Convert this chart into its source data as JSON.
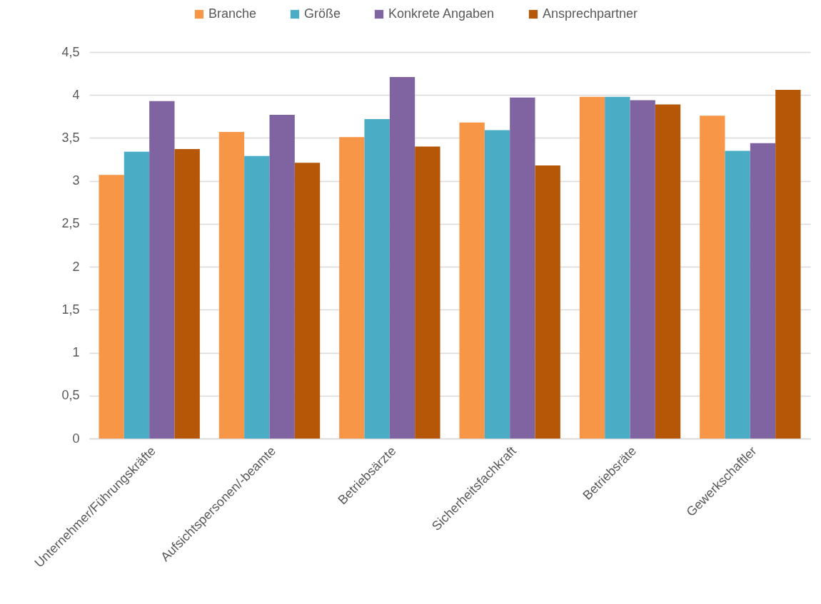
{
  "chart_data": {
    "type": "bar",
    "categories": [
      "Unternehmer/Führungskräfte",
      "Aufsichtspersonen/-beamte",
      "Betriebsärzte",
      "Sicherheitsfachkraft",
      "Betriebsräte",
      "Gewerkschaftler"
    ],
    "series": [
      {
        "name": "Branche",
        "color": "#f79646",
        "values": [
          3.07,
          3.57,
          3.51,
          3.68,
          3.98,
          3.76
        ]
      },
      {
        "name": "Größe",
        "color": "#4bacc6",
        "values": [
          3.34,
          3.29,
          3.72,
          3.59,
          3.98,
          3.35
        ]
      },
      {
        "name": "Konkrete Angaben",
        "color": "#8064a2",
        "values": [
          3.93,
          3.77,
          4.21,
          3.97,
          3.94,
          3.44
        ]
      },
      {
        "name": "Ansprechpartner",
        "color": "#b65708",
        "values": [
          3.37,
          3.21,
          3.4,
          3.18,
          3.89,
          4.06
        ]
      }
    ],
    "ylim": [
      0,
      4.5
    ],
    "yticks": [
      0,
      {
        "value": 0.5,
        "label": "0,5"
      },
      1,
      {
        "value": 1.5,
        "label": "1,5"
      },
      2,
      {
        "value": 2.5,
        "label": "2,5"
      },
      3,
      {
        "value": 3.5,
        "label": "3,5"
      },
      4,
      {
        "value": 4.5,
        "label": "4,5"
      }
    ],
    "grid": "y",
    "legend": "top"
  }
}
